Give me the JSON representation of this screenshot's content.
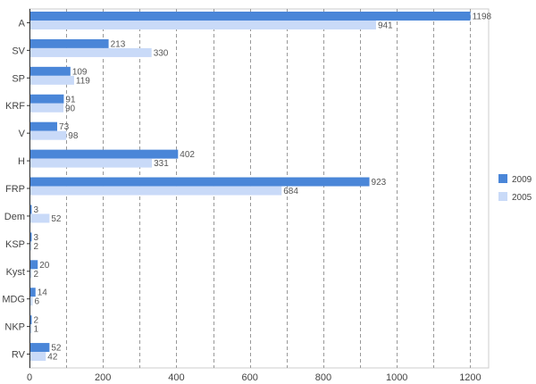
{
  "chart_data": {
    "type": "bar",
    "orientation": "horizontal",
    "categories": [
      "A",
      "SV",
      "SP",
      "KRF",
      "V",
      "H",
      "FRP",
      "Dem",
      "KSP",
      "Kyst",
      "MDG",
      "NKP",
      "RV"
    ],
    "series": [
      {
        "name": "2009",
        "color": "#4a86d8",
        "values": [
          1198,
          213,
          109,
          91,
          73,
          402,
          923,
          3,
          3,
          20,
          14,
          2,
          52
        ]
      },
      {
        "name": "2005",
        "color": "#c9daf8",
        "values": [
          941,
          330,
          119,
          90,
          98,
          331,
          684,
          52,
          2,
          2,
          6,
          1,
          42
        ]
      }
    ],
    "xlim": [
      0,
      1250
    ],
    "x_ticks": [
      0,
      200,
      400,
      600,
      800,
      1000,
      1200
    ],
    "x_gridlines": [
      100,
      200,
      300,
      400,
      500,
      600,
      700,
      800,
      900,
      1000,
      1100,
      1200
    ],
    "grid": "vertical dashed",
    "legend_position": "right"
  }
}
